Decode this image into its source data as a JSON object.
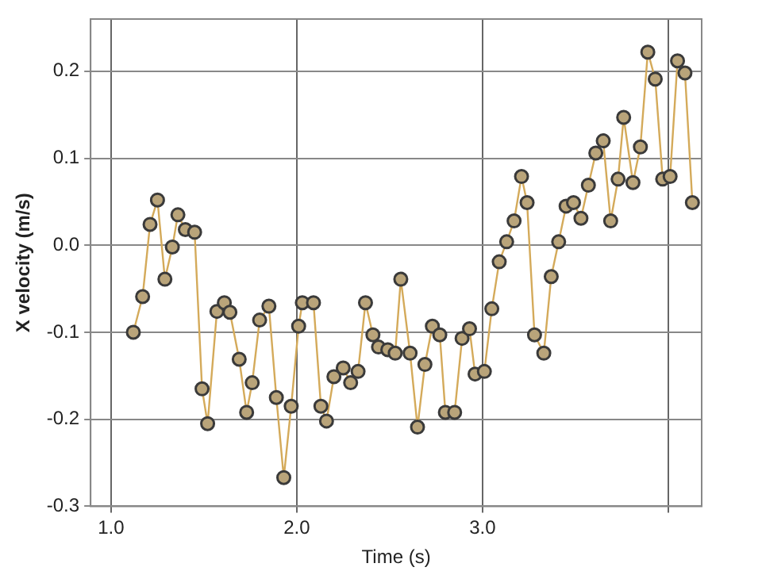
{
  "chart_data": {
    "type": "line",
    "xlabel": "Time (s)",
    "ylabel": "X velocity (m/s)",
    "series": [
      {
        "color": "#d4aa5a",
        "x": [
          1.12,
          1.17,
          1.21,
          1.25,
          1.29,
          1.33,
          1.36,
          1.4,
          1.45,
          1.49,
          1.52,
          1.57,
          1.61,
          1.64,
          1.69,
          1.73,
          1.76,
          1.8,
          1.85,
          1.89,
          1.93,
          1.97,
          2.01,
          2.03,
          2.09,
          2.13,
          2.16,
          2.2,
          2.25,
          2.29,
          2.33,
          2.37,
          2.41,
          2.44,
          2.49,
          2.53,
          2.56,
          2.61,
          2.65,
          2.69,
          2.73,
          2.77,
          2.8,
          2.85,
          2.89,
          2.93,
          2.96,
          3.01,
          3.05,
          3.09,
          3.13,
          3.17,
          3.21,
          3.24,
          3.28,
          3.33,
          3.37,
          3.41,
          3.45,
          3.49,
          3.53,
          3.57,
          3.61,
          3.65,
          3.69,
          3.73,
          3.76,
          3.81,
          3.85,
          3.89,
          3.93,
          3.97,
          4.01,
          4.05,
          4.09,
          4.13
        ],
        "values": [
          -0.1,
          -0.059,
          0.024,
          0.052,
          -0.039,
          -0.002,
          0.035,
          0.018,
          0.015,
          -0.165,
          -0.205,
          -0.076,
          -0.066,
          -0.077,
          -0.131,
          -0.192,
          -0.158,
          -0.086,
          -0.07,
          -0.175,
          -0.267,
          -0.185,
          -0.093,
          -0.066,
          -0.066,
          -0.185,
          -0.202,
          -0.151,
          -0.141,
          -0.158,
          -0.145,
          -0.066,
          -0.103,
          -0.117,
          -0.12,
          -0.124,
          -0.039,
          -0.124,
          -0.209,
          -0.137,
          -0.093,
          -0.103,
          -0.192,
          -0.192,
          -0.107,
          -0.096,
          -0.148,
          -0.145,
          -0.073,
          -0.019,
          0.004,
          0.028,
          0.079,
          0.049,
          -0.103,
          -0.124,
          -0.036,
          0.004,
          0.045,
          0.049,
          0.031,
          0.069,
          0.106,
          0.12,
          0.028,
          0.076,
          0.147,
          0.072,
          0.113,
          0.222,
          0.191,
          0.076,
          0.079,
          0.212,
          0.198,
          0.049
        ]
      }
    ],
    "xlim": [
      0.89,
      4.18
    ],
    "xticks": [
      {
        "value": 1,
        "label": "1.0"
      },
      {
        "value": 2,
        "label": "2.0"
      },
      {
        "value": 3,
        "label": "3.0"
      },
      {
        "value": 4,
        "label": null
      }
    ],
    "ylim": [
      -0.3,
      0.26
    ],
    "yticks": [
      {
        "value": -0.3,
        "label": "-0.3"
      },
      {
        "value": -0.2,
        "label": "-0.2"
      },
      {
        "value": -0.1,
        "label": "-0.1"
      },
      {
        "value": 0,
        "label": "0.0"
      },
      {
        "value": 0.1,
        "label": "0.1"
      },
      {
        "value": 0.2,
        "label": "0.2"
      }
    ],
    "grid": true,
    "marker": "circle",
    "line_style": "solid",
    "legend": false
  }
}
